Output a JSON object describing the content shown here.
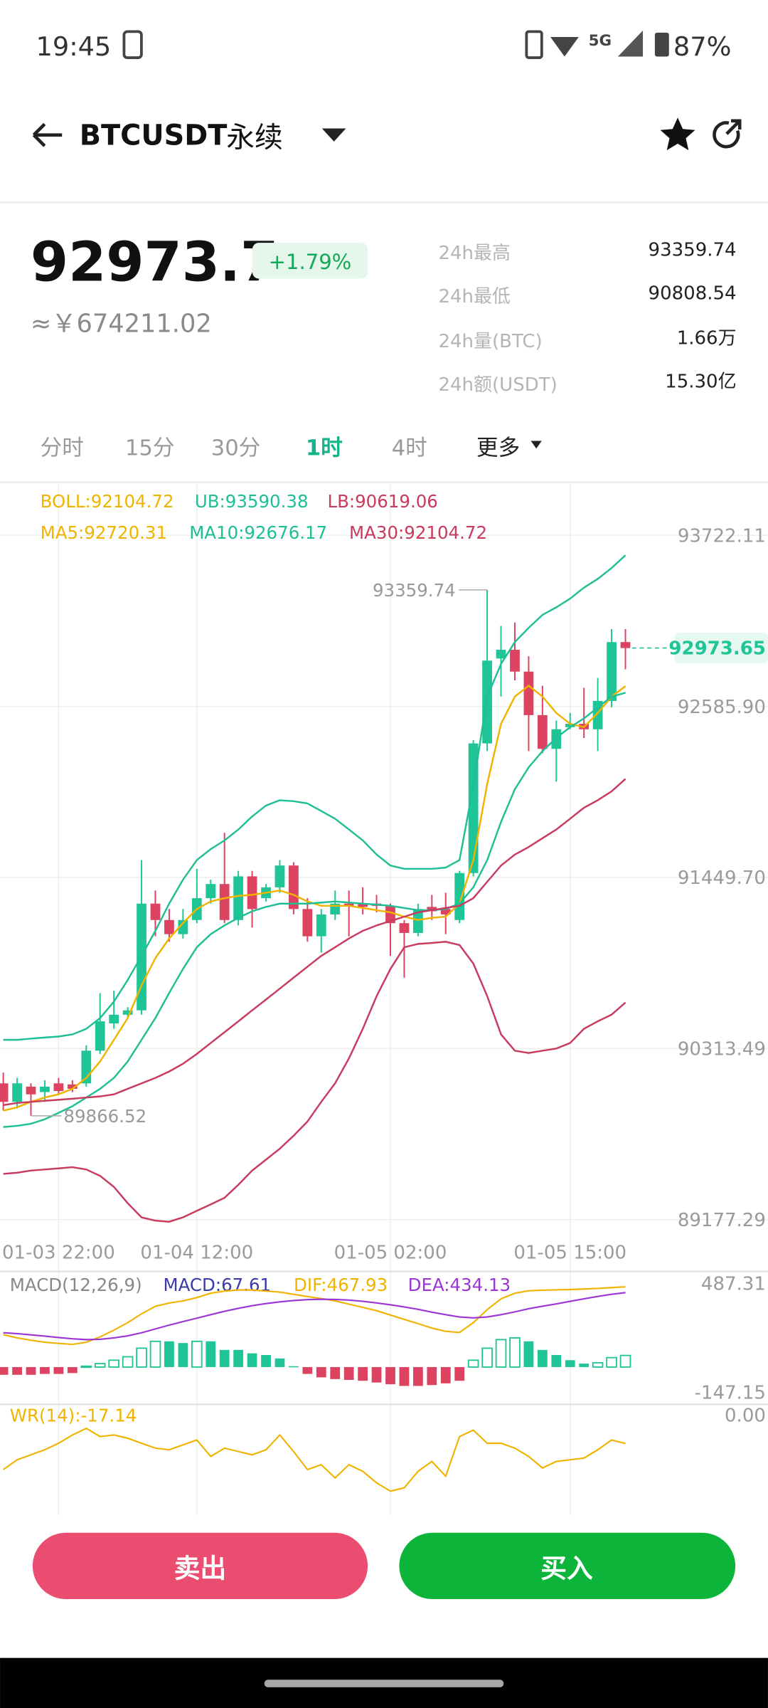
{
  "status_bar": {
    "time": "19:45",
    "network": "5G",
    "battery": "87%"
  },
  "header": {
    "symbol": "BTCUSDT",
    "contract": "永续"
  },
  "ticker": {
    "price": "92973.7",
    "change": "+1.79%",
    "cny": "≈￥674211.02",
    "stats": [
      {
        "label": "24h最高",
        "value": "93359.74"
      },
      {
        "label": "24h最低",
        "value": "90808.54"
      },
      {
        "label": "24h量(BTC)",
        "value": "1.66万"
      },
      {
        "label": "24h额(USDT)",
        "value": "15.30亿"
      }
    ]
  },
  "tabs": {
    "items": [
      "分时",
      "15分",
      "30分",
      "1时",
      "4时",
      "更多"
    ],
    "active": 3
  },
  "chart_data": [
    {
      "type": "candlestick",
      "up_color": "#1fc497",
      "down_color": "#dc4360",
      "grid": true,
      "boll": {
        "label": "BOLL:92104.72",
        "color": "#f0b400"
      },
      "categories": [
        null,
        null,
        null,
        null,
        "01-03 22:00",
        null,
        null,
        null,
        null,
        null,
        null,
        null,
        null,
        null,
        "01-04 12:00",
        null,
        null,
        null,
        null,
        null,
        null,
        null,
        null,
        null,
        null,
        null,
        null,
        null,
        "01-05 02:00",
        null,
        null,
        null,
        null,
        null,
        null,
        null,
        null,
        null,
        null,
        null,
        null,
        "01-05 15:00",
        null,
        null,
        null,
        null
      ],
      "open": [
        90082,
        89959,
        90060,
        90024,
        90082,
        90075,
        90082,
        90299,
        90480,
        90538,
        90567,
        91276,
        91167,
        91073,
        91167,
        91312,
        91406,
        91167,
        91457,
        91312,
        91384,
        91529,
        91240,
        91059,
        91204,
        91276,
        91276,
        91276,
        91261,
        91146,
        91081,
        91254,
        91240,
        91167,
        91479,
        92340,
        92904,
        92962,
        92817,
        92528,
        92304,
        92448,
        92470,
        92434,
        92622,
        93013
      ],
      "close": [
        89959,
        90082,
        90009,
        90060,
        90031,
        90046,
        90299,
        90494,
        90538,
        90567,
        91276,
        91167,
        91073,
        91167,
        91312,
        91406,
        91167,
        91457,
        91240,
        91384,
        91529,
        91240,
        91059,
        91204,
        91276,
        91261,
        91254,
        91261,
        91146,
        91081,
        91240,
        91225,
        91204,
        91479,
        92340,
        92890,
        92962,
        92817,
        92528,
        92304,
        92434,
        92470,
        92434,
        92622,
        93013,
        92973.65
      ],
      "high": [
        90154,
        90118,
        90082,
        90103,
        90118,
        90103,
        90335,
        90682,
        90697,
        90588,
        91565,
        91363,
        91240,
        91240,
        91507,
        91435,
        91746,
        91493,
        91493,
        91406,
        91565,
        91551,
        91312,
        91240,
        91363,
        91363,
        91384,
        91334,
        91276,
        91167,
        91276,
        91334,
        91348,
        91493,
        92361,
        93359.74,
        93121,
        93143,
        92919,
        92723,
        92492,
        92542,
        92709,
        92774,
        93100,
        93100
      ],
      "low": [
        89901,
        89915,
        89866.52,
        89973,
        90009,
        90024,
        90060,
        90277,
        90444,
        90516,
        90538,
        91059,
        91023,
        91044,
        91146,
        91276,
        91146,
        91131,
        91117,
        91290,
        91348,
        91204,
        91023,
        90950,
        91167,
        91059,
        91204,
        91218,
        90929,
        90784,
        91059,
        91167,
        91073,
        91146,
        91457,
        92289,
        92651,
        92759,
        92289,
        92275,
        92086,
        92434,
        92376,
        92289,
        92579,
        92832
      ],
      "series": [
        {
          "name": "UB:93590.38",
          "color": "#1fbf96",
          "values": [
            90371,
            90371,
            90379,
            90386,
            90393,
            90407,
            90444,
            90516,
            90625,
            90769,
            90929,
            91095,
            91276,
            91435,
            91565,
            91638,
            91696,
            91768,
            91855,
            91927,
            91963,
            91956,
            91942,
            91891,
            91840,
            91768,
            91696,
            91602,
            91529,
            91507,
            91507,
            91507,
            91515,
            91565,
            92057,
            92651,
            92868,
            93013,
            93107,
            93194,
            93244,
            93302,
            93375,
            93433,
            93505,
            93590.38
          ]
        },
        {
          "name": "LB:90619.06",
          "color": "#c83a5e",
          "values": [
            89481,
            89488,
            89503,
            89510,
            89517,
            89525,
            89510,
            89467,
            89394,
            89286,
            89192,
            89170,
            89163,
            89192,
            89235,
            89278,
            89322,
            89409,
            89503,
            89575,
            89648,
            89734,
            89828,
            89959,
            90082,
            90248,
            90444,
            90661,
            90842,
            90986,
            91008,
            91015,
            91023,
            91001,
            90878,
            90661,
            90407,
            90299,
            90284,
            90299,
            90313,
            90350,
            90444,
            90494,
            90538,
            90619.06
          ]
        },
        {
          "name": "MA5:92720.31",
          "color": "#f0b400",
          "values": [
            89901,
            89923,
            89959,
            89988,
            90009,
            90046,
            90118,
            90227,
            90371,
            90516,
            90733,
            90914,
            91044,
            91146,
            91240,
            91290,
            91312,
            91327,
            91334,
            91348,
            91363,
            91334,
            91290,
            91261,
            91261,
            91261,
            91247,
            91232,
            91218,
            91189,
            91167,
            91182,
            91189,
            91276,
            91565,
            92072,
            92470,
            92651,
            92723,
            92651,
            92542,
            92470,
            92448,
            92542,
            92651,
            92720.31
          ]
        },
        {
          "name": "MA10:92676.17",
          "color": "#1fbf96",
          "values": [
            89792,
            89800,
            89814,
            89843,
            89886,
            89930,
            89988,
            90046,
            90118,
            90227,
            90371,
            90516,
            90682,
            90842,
            90986,
            91073,
            91131,
            91182,
            91225,
            91254,
            91276,
            91276,
            91276,
            91283,
            91290,
            91283,
            91276,
            91269,
            91261,
            91247,
            91232,
            91232,
            91240,
            91276,
            91384,
            91565,
            91819,
            92036,
            92181,
            92289,
            92376,
            92448,
            92506,
            92579,
            92651,
            92676.17
          ]
        },
        {
          "name": "MA30:92104.72",
          "color": "#c83a5e",
          "values": [
            89937,
            89952,
            89959,
            89966,
            89973,
            89980,
            89988,
            89995,
            90009,
            90046,
            90082,
            90118,
            90161,
            90212,
            90277,
            90350,
            90422,
            90494,
            90567,
            90639,
            90711,
            90784,
            90856,
            90929,
            90986,
            91044,
            91095,
            91131,
            91160,
            91189,
            91218,
            91232,
            91247,
            91261,
            91312,
            91421,
            91529,
            91602,
            91652,
            91710,
            91768,
            91840,
            91913,
            91963,
            92021,
            92104.72
          ]
        }
      ],
      "ylim": [
        89100,
        93800
      ],
      "yticks": [
        93722.11,
        {
          "value": 92585.9,
          "label": "92585.90"
        },
        {
          "value": 91449.7,
          "label": "91449.70"
        },
        90313.49,
        89177.29
      ]
    },
    {
      "type": "macd",
      "title": "MACD(12,26,9)",
      "up_color": "#1fc497",
      "down_color": "#dc4360",
      "series": [
        {
          "name": "MACD:67.61",
          "color": "#3a3aa8",
          "kind": "bar",
          "values": [
            -45,
            -45,
            -45,
            -40,
            -40,
            -35,
            5,
            20,
            40,
            60,
            110,
            150,
            150,
            140,
            150,
            150,
            100,
            100,
            80,
            70,
            50,
            5,
            -40,
            -60,
            -70,
            -75,
            -80,
            -90,
            -100,
            -110,
            -110,
            -105,
            -95,
            -80,
            40,
            110,
            160,
            170,
            150,
            100,
            70,
            40,
            20,
            25,
            55,
            67.61
          ]
        },
        {
          "name": "DIF:467.93",
          "color": "#f0b400",
          "kind": "line",
          "values": [
            189,
            170,
            157,
            145,
            138,
            132,
            145,
            176,
            215,
            259,
            310,
            354,
            373,
            386,
            405,
            430,
            443,
            449,
            449,
            443,
            437,
            424,
            411,
            399,
            386,
            367,
            348,
            329,
            303,
            278,
            253,
            227,
            208,
            202,
            259,
            335,
            398,
            430,
            445,
            448,
            450,
            452,
            455,
            458,
            463,
            467.93
          ]
        },
        {
          "name": "DEA:434.13",
          "color": "#9b35d6",
          "kind": "line",
          "values": [
            200,
            195,
            188,
            180,
            172,
            165,
            160,
            162,
            170,
            182,
            200,
            222,
            244,
            265,
            285,
            305,
            325,
            342,
            358,
            370,
            380,
            388,
            393,
            395,
            394,
            390,
            383,
            374,
            363,
            350,
            336,
            320,
            305,
            292,
            287,
            292,
            305,
            322,
            340,
            355,
            368,
            383,
            398,
            412,
            424,
            434.13
          ]
        }
      ],
      "ylim": [
        -147.15,
        487.31
      ],
      "yticks": [
        487.31,
        -147.15
      ]
    },
    {
      "type": "line",
      "series": [
        {
          "name": "WR(14):-17.14",
          "color": "#f0b400",
          "values": [
            -33,
            -27,
            -24,
            -21,
            -17,
            -12,
            -8,
            -13,
            -12,
            -14,
            -17,
            -20,
            -21,
            -18,
            -15,
            -25,
            -20,
            -22,
            -24,
            -21,
            -12,
            -22,
            -33,
            -30,
            -38,
            -30,
            -34,
            -41,
            -46,
            -44,
            -34,
            -28,
            -37,
            -13,
            -9,
            -17,
            -17,
            -20,
            -25,
            -32,
            -28,
            -27,
            -26,
            -21,
            -15,
            -17.14
          ]
        }
      ],
      "ylim": [
        -60,
        0
      ],
      "yticks": [
        {
          "value": 0,
          "label": "0.00"
        }
      ]
    }
  ],
  "buttons": {
    "sell": "卖出",
    "buy": "买入"
  }
}
